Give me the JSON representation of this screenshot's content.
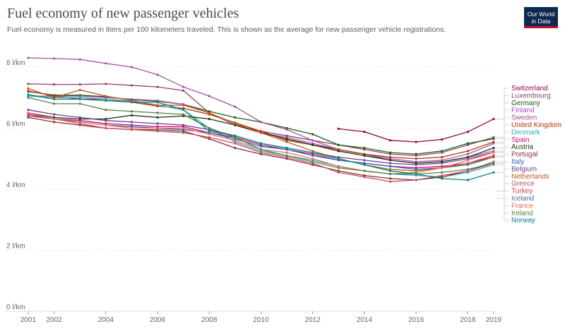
{
  "header": {
    "title": "Fuel economy of new passenger vehicles",
    "subtitle": "Fuel economy is measured in liters per 100 kilometers traveled. This is shown as the average for new passenger vehicle registrations.",
    "logo_line1": "Our World",
    "logo_line2": "in Data"
  },
  "colors": {
    "logo_bg": "#0d2a4e",
    "logo_accent": "#c8102e",
    "grid": "#dddddd"
  },
  "chart_data": {
    "type": "line",
    "title": "Fuel economy of new passenger vehicles",
    "xlabel": "",
    "ylabel": "",
    "xlim": [
      2001,
      2019
    ],
    "ylim": [
      0,
      8
    ],
    "x_ticks": [
      2001,
      2002,
      2004,
      2006,
      2008,
      2010,
      2012,
      2014,
      2016,
      2018,
      2019
    ],
    "x_tick_labels": [
      "2001",
      "2002",
      "2004",
      "2006",
      "2008",
      "2010",
      "2012",
      "2014",
      "2016",
      "2018",
      "2019"
    ],
    "y_ticks": [
      0,
      2,
      4,
      6,
      8
    ],
    "y_tick_labels": [
      "0 l/km",
      "2 l/km",
      "4 l/km",
      "6 l/km",
      "8 l/km"
    ],
    "grid": "horizontal dashed",
    "legend": "right",
    "x": [
      2001,
      2002,
      2003,
      2004,
      2005,
      2006,
      2007,
      2008,
      2009,
      2010,
      2011,
      2012,
      2013,
      2014,
      2015,
      2016,
      2017,
      2018,
      2019
    ],
    "series": [
      {
        "name": "Switzerland",
        "color": "#970046",
        "values": [
          null,
          null,
          null,
          null,
          null,
          null,
          null,
          null,
          null,
          null,
          null,
          null,
          5.98,
          5.88,
          5.6,
          5.55,
          5.63,
          5.88,
          6.3
        ]
      },
      {
        "name": "Luxembourg",
        "color": "#8c4569",
        "values": [
          7.45,
          7.43,
          7.43,
          7.45,
          7.4,
          7.35,
          7.23,
          6.5,
          6.1,
          5.9,
          5.75,
          5.6,
          5.45,
          5.3,
          5.15,
          5.1,
          5.2,
          5.45,
          5.7
        ]
      },
      {
        "name": "Germany",
        "color": "#1a5c1a",
        "values": [
          7.2,
          7.08,
          7.08,
          7.03,
          6.93,
          6.88,
          6.78,
          6.55,
          6.35,
          6.2,
          6.0,
          5.8,
          5.45,
          5.35,
          5.2,
          5.15,
          5.25,
          5.5,
          5.65
        ]
      },
      {
        "name": "Finland",
        "color": "#a652ba",
        "values": [
          7.05,
          7.05,
          7.05,
          7.0,
          6.95,
          6.9,
          6.78,
          6.5,
          6.1,
          5.85,
          5.7,
          5.5,
          5.3,
          5.15,
          5.0,
          4.9,
          4.95,
          5.15,
          5.5
        ]
      },
      {
        "name": "Sweden",
        "color": "#a2559c",
        "values": [
          8.3,
          8.28,
          8.25,
          8.12,
          8.0,
          7.75,
          7.35,
          7.05,
          6.7,
          6.2,
          5.95,
          5.6,
          5.3,
          5.15,
          4.95,
          4.85,
          4.9,
          5.05,
          5.25
        ]
      },
      {
        "name": "United Kingdom",
        "color": "#b13507",
        "values": [
          7.22,
          7.05,
          6.95,
          6.95,
          6.85,
          6.72,
          6.65,
          6.45,
          6.18,
          5.9,
          5.6,
          5.45,
          5.3,
          5.15,
          5.05,
          5.0,
          5.05,
          5.25,
          5.55
        ]
      },
      {
        "name": "Denmark",
        "color": "#38aaba",
        "values": [
          7.05,
          7.0,
          7.0,
          6.95,
          6.88,
          6.75,
          6.6,
          6.0,
          5.55,
          5.25,
          5.1,
          4.95,
          4.75,
          4.6,
          4.5,
          4.45,
          4.4,
          4.55,
          4.8
        ]
      },
      {
        "name": "Spain",
        "color": "#cf0a66",
        "values": [
          6.45,
          6.3,
          6.25,
          6.15,
          6.1,
          6.05,
          6.05,
          5.85,
          5.7,
          5.45,
          5.3,
          5.15,
          4.95,
          4.85,
          4.75,
          4.7,
          4.75,
          4.85,
          5.1
        ]
      },
      {
        "name": "Austria",
        "color": "#18370f",
        "values": [
          6.5,
          6.35,
          6.3,
          6.3,
          6.42,
          6.35,
          6.4,
          6.3,
          6.1,
          5.85,
          5.65,
          5.45,
          5.25,
          5.1,
          4.95,
          4.85,
          4.9,
          5.05,
          5.35
        ]
      },
      {
        "name": "Portugal",
        "color": "#883039",
        "values": [
          6.35,
          6.2,
          6.1,
          6.0,
          5.95,
          5.95,
          5.9,
          5.65,
          5.35,
          5.15,
          5.0,
          4.8,
          4.6,
          4.45,
          4.35,
          4.3,
          4.4,
          4.6,
          4.85
        ]
      },
      {
        "name": "Italy",
        "color": "#286bbb",
        "values": [
          6.4,
          6.3,
          6.2,
          6.1,
          6.05,
          6.0,
          5.95,
          5.85,
          5.65,
          5.4,
          5.3,
          5.1,
          4.95,
          4.85,
          4.75,
          4.65,
          4.7,
          4.8,
          5.05
        ]
      },
      {
        "name": "Belgium",
        "color": "#6d3e91",
        "values": [
          6.6,
          6.45,
          6.35,
          6.25,
          6.2,
          6.15,
          6.1,
          5.95,
          5.75,
          5.5,
          5.35,
          5.2,
          5.05,
          4.95,
          4.85,
          4.8,
          4.85,
          5.0,
          5.2
        ]
      },
      {
        "name": "Netherlands",
        "color": "#c05917",
        "values": [
          7.3,
          7.0,
          7.25,
          7.05,
          6.9,
          6.75,
          6.75,
          6.5,
          6.15,
          5.85,
          5.55,
          5.25,
          5.0,
          4.8,
          4.65,
          4.6,
          4.7,
          4.85,
          5.05
        ]
      },
      {
        "name": "Greece",
        "color": "#c15065",
        "values": [
          6.4,
          6.3,
          6.15,
          6.0,
          5.95,
          5.9,
          5.85,
          5.7,
          5.5,
          5.2,
          5.05,
          4.85,
          4.55,
          4.4,
          4.25,
          4.3,
          4.45,
          4.6,
          4.9
        ]
      },
      {
        "name": "Turkey",
        "color": "#d73c50",
        "values": [
          null,
          null,
          null,
          null,
          null,
          null,
          null,
          null,
          null,
          null,
          null,
          null,
          null,
          null,
          null,
          null,
          null,
          null,
          null
        ]
      },
      {
        "name": "Iceland",
        "color": "#4c6a9c",
        "values": [
          null,
          null,
          null,
          null,
          null,
          null,
          null,
          null,
          null,
          null,
          null,
          null,
          null,
          null,
          null,
          null,
          null,
          null,
          null
        ]
      },
      {
        "name": "France",
        "color": "#e56e5a",
        "values": [
          6.5,
          6.3,
          6.2,
          6.1,
          6.0,
          6.0,
          6.0,
          5.8,
          5.6,
          5.3,
          5.2,
          5.0,
          4.75,
          4.6,
          4.5,
          4.55,
          4.7,
          4.95,
          5.2
        ]
      },
      {
        "name": "Ireland",
        "color": "#578145",
        "values": [
          7.0,
          6.8,
          6.8,
          6.6,
          6.55,
          6.5,
          6.45,
          6.0,
          5.7,
          5.3,
          5.1,
          4.9,
          4.7,
          4.6,
          4.5,
          4.5,
          4.55,
          4.65,
          4.85
        ]
      },
      {
        "name": "Norway",
        "color": "#00847e",
        "values": [
          7.1,
          6.95,
          6.95,
          6.9,
          6.85,
          6.85,
          6.6,
          5.9,
          5.75,
          5.5,
          5.35,
          5.2,
          5.0,
          4.8,
          4.6,
          4.5,
          4.35,
          4.3,
          4.55
        ]
      }
    ]
  }
}
